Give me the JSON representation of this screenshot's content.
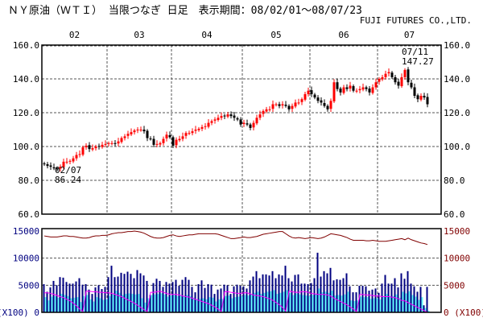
{
  "header": {
    "title": "ＮＹ原油（ＷＴＩ） 当限つなぎ 日足　表示期間：08/02/01～08/07/23",
    "company": "FUJI FUTURES CO.,LTD."
  },
  "colors": {
    "up": "#ff0000",
    "down": "#000000",
    "volume": "#000080",
    "open_interest_bar": "#66ffff",
    "line_red": "#800000",
    "line_magenta": "#ff00ff",
    "left_axis": "#000080",
    "right_axis": "#800000",
    "grid": "#555555"
  },
  "chart_data": [
    {
      "type": "candlestick",
      "month_labels": [
        "02",
        "03",
        "04",
        "05",
        "06",
        "07"
      ],
      "month_start_index": [
        0,
        20,
        40,
        62,
        83,
        104
      ],
      "y_ticks": [
        "160.0",
        "140.0",
        "120.0",
        "100.0",
        "80.0",
        "60.0"
      ],
      "ylim": [
        60,
        160
      ],
      "grid": true,
      "close": [
        89.5,
        88.5,
        88.0,
        87.1,
        86.6,
        88.0,
        91.0,
        91.0,
        91.5,
        93.0,
        95.0,
        95.5,
        99.5,
        100.5,
        98.5,
        99.0,
        100.0,
        100.0,
        101.0,
        101.5,
        102.0,
        102.0,
        101.5,
        103.0,
        105.0,
        106.0,
        107.5,
        108.5,
        109.5,
        110.0,
        110.0,
        109.0,
        105.0,
        104.5,
        101.0,
        101.5,
        102.0,
        104.5,
        107.0,
        105.5,
        100.5,
        104.0,
        104.5,
        106.0,
        108.0,
        108.0,
        109.0,
        110.0,
        110.5,
        111.5,
        112.0,
        114.0,
        115.0,
        116.0,
        117.0,
        118.0,
        118.0,
        119.0,
        118.0,
        117.0,
        116.0,
        113.0,
        114.0,
        113.0,
        111.0,
        114.0,
        117.0,
        119.0,
        121.0,
        122.0,
        122.0,
        125.0,
        125.0,
        124.0,
        125.0,
        124.0,
        122.0,
        124.0,
        126.0,
        126.0,
        128.0,
        131.0,
        133.0,
        131.0,
        129.0,
        127.0,
        126.0,
        124.0,
        122.0,
        127.0,
        138.0,
        134.0,
        132.0,
        135.0,
        134.0,
        136.0,
        133.0,
        133.0,
        134.0,
        135.0,
        134.0,
        132.0,
        135.0,
        138.0,
        140.0,
        141.0,
        143.0,
        144.0,
        141.0,
        138.0,
        136.0,
        141.0,
        145.3,
        138.0,
        135.0,
        130.0,
        128.0,
        130.0,
        129.0,
        125.0
      ],
      "annotations": [
        {
          "date": "02/07",
          "value": "86.24",
          "index": 4
        },
        {
          "date": "07/11",
          "value": "147.27",
          "index": 112
        }
      ]
    },
    {
      "type": "bar+line",
      "left_ticks": [
        "15000",
        "10000",
        "5000",
        "0"
      ],
      "right_ticks": [
        "15000",
        "10000",
        "5000",
        "0"
      ],
      "unit": "(X100)",
      "ylim": [
        0,
        15000
      ],
      "volume": [
        5200,
        3800,
        4600,
        5800,
        5000,
        6500,
        6400,
        5600,
        5300,
        5300,
        5700,
        6300,
        5100,
        5200,
        4200,
        3400,
        4600,
        5000,
        4300,
        4700,
        6500,
        8600,
        6500,
        6600,
        7300,
        7100,
        7500,
        7100,
        6300,
        7800,
        7200,
        6800,
        5800,
        3200,
        5400,
        6200,
        5800,
        4700,
        5600,
        5300,
        5600,
        6000,
        4900,
        6000,
        6500,
        6000,
        4700,
        3700,
        5200,
        5900,
        4500,
        5200,
        5100,
        3400,
        4200,
        4400,
        5100,
        5000,
        3400,
        4800,
        5100,
        4900,
        4800,
        4400,
        5900,
        6600,
        7600,
        6300,
        7000,
        7000,
        6800,
        7600,
        6300,
        7000,
        6800,
        8600,
        6300,
        5700,
        6900,
        7000,
        5300,
        5300,
        5200,
        5400,
        6300,
        11000,
        6600,
        7600,
        7200,
        8200,
        5900,
        6100,
        6000,
        6300,
        7200,
        4800,
        3700,
        3700,
        4900,
        4900,
        4800,
        4000,
        4200,
        4400,
        3600,
        5300,
        6900,
        5300,
        5300,
        6300,
        4600,
        7200,
        6200,
        7600,
        5300,
        4800,
        3800,
        4700,
        1300,
        4700
      ],
      "cyan_bars": [
        2800,
        2200,
        2900,
        3000,
        2700,
        3400,
        3200,
        3000,
        2600,
        2700,
        2800,
        1900,
        3000,
        3200,
        2400,
        2000,
        2800,
        2600,
        2300,
        2400,
        3000,
        3300,
        4000,
        3600,
        3200,
        3400,
        3500,
        3400,
        3300,
        3400,
        2600,
        1800,
        2600,
        3200,
        3300,
        3400,
        3500,
        3300,
        2900,
        3100,
        3200,
        3000,
        3100,
        3000,
        3200,
        3000,
        2700,
        2400,
        2500,
        2600,
        2400,
        2800,
        2700,
        2000,
        2400,
        2500,
        3000,
        3100,
        2600,
        2800,
        2900,
        3000,
        3200,
        3100,
        3400,
        3600,
        3800,
        3400,
        3600,
        3800,
        3900,
        4100,
        3400,
        3600,
        3800,
        4100,
        3600,
        3200,
        3500,
        3300,
        3200,
        3100,
        3000,
        3200,
        3300,
        4400,
        3700,
        3800,
        3600,
        4000,
        3100,
        3200,
        3100,
        3300,
        3800,
        2200,
        2100,
        2200,
        2900,
        2800,
        2800,
        2500,
        2600,
        2600,
        2400,
        2900,
        3400,
        3000,
        3000,
        3300,
        2700,
        3800,
        3500,
        3900,
        3200,
        2900,
        2300,
        2800,
        800,
        300
      ],
      "magenta_line": [
        3600,
        3600,
        3500,
        3300,
        3100,
        2900,
        2700,
        2400,
        2100,
        1700,
        1200,
        600,
        100,
        3900,
        3900,
        3800,
        3800,
        3700,
        3700,
        3600,
        3600,
        3500,
        3300,
        3100,
        2900,
        2600,
        2300,
        2000,
        1700,
        1300,
        900,
        500,
        100,
        3700,
        3700,
        3800,
        3900,
        3700,
        3500,
        3300,
        3300,
        3300,
        3200,
        3000,
        2900,
        2800,
        2600,
        2400,
        2200,
        2000,
        1800,
        1600,
        1300,
        1000,
        600,
        100,
        3800,
        3800,
        3700,
        3600,
        3500,
        3500,
        3600,
        3600,
        3400,
        3200,
        3100,
        3000,
        2900,
        2700,
        2500,
        2200,
        1800,
        1400,
        900,
        200,
        3900,
        3800,
        3700,
        3700,
        3800,
        3800,
        3700,
        3500,
        3400,
        3300,
        3300,
        3300,
        3200,
        3000,
        2600,
        2300,
        2000,
        1700,
        1400,
        1000,
        600,
        100,
        3300,
        3300,
        3200,
        3200,
        3100,
        3000,
        3000,
        2900,
        2900,
        2900,
        2800,
        2700,
        2500,
        2200,
        2100,
        1800,
        1500,
        1200,
        900,
        600,
        300,
        0
      ],
      "red_line": [
        14100,
        14000,
        13900,
        13900,
        13900,
        14000,
        14100,
        14100,
        14000,
        14000,
        13900,
        13800,
        13700,
        13700,
        13800,
        14000,
        14100,
        14100,
        14200,
        14200,
        14300,
        14500,
        14600,
        14700,
        14700,
        14800,
        14900,
        14900,
        15000,
        14900,
        14800,
        14600,
        14300,
        14000,
        13800,
        13700,
        13700,
        13800,
        14000,
        14200,
        14300,
        14100,
        14000,
        14100,
        14200,
        14300,
        14300,
        14400,
        14500,
        14500,
        14500,
        14500,
        14500,
        14500,
        14400,
        14200,
        14000,
        13800,
        13600,
        13600,
        13700,
        13800,
        13900,
        13800,
        13800,
        13900,
        14000,
        14200,
        14400,
        14500,
        14600,
        14700,
        14800,
        14900,
        14900,
        14500,
        14100,
        13800,
        13700,
        13800,
        13700,
        13600,
        13700,
        13800,
        13700,
        13600,
        13700,
        13900,
        14200,
        14500,
        14400,
        14300,
        14200,
        14000,
        13800,
        13500,
        13300,
        13300,
        13300,
        13300,
        13200,
        13200,
        13300,
        13200,
        13100,
        13100,
        13100,
        13200,
        13300,
        13400,
        13500,
        13600,
        13400,
        13700,
        13400,
        13200,
        13000,
        12800,
        12700,
        12500
      ]
    }
  ]
}
